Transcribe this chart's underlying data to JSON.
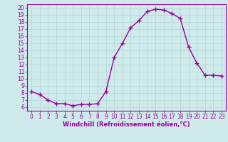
{
  "x": [
    0,
    1,
    2,
    3,
    4,
    5,
    6,
    7,
    8,
    9,
    10,
    11,
    12,
    13,
    14,
    15,
    16,
    17,
    18,
    19,
    20,
    21,
    22,
    23
  ],
  "y": [
    8.2,
    7.8,
    7.0,
    6.5,
    6.5,
    6.2,
    6.4,
    6.4,
    6.5,
    8.2,
    13.0,
    15.0,
    17.2,
    18.2,
    19.5,
    19.8,
    19.7,
    19.2,
    18.5,
    14.5,
    12.2,
    10.5,
    10.5,
    10.4
  ],
  "line_color": "#990099",
  "marker": "+",
  "markersize": 4,
  "linewidth": 1.0,
  "markeredgewidth": 1.0,
  "xlabel": "Windchill (Refroidissement éolien,°C)",
  "xlabel_fontsize": 6,
  "xlim": [
    -0.5,
    23.5
  ],
  "ylim": [
    5.5,
    20.5
  ],
  "yticks": [
    6,
    7,
    8,
    9,
    10,
    11,
    12,
    13,
    14,
    15,
    16,
    17,
    18,
    19,
    20
  ],
  "xticks": [
    0,
    1,
    2,
    3,
    4,
    5,
    6,
    7,
    8,
    9,
    10,
    11,
    12,
    13,
    14,
    15,
    16,
    17,
    18,
    19,
    20,
    21,
    22,
    23
  ],
  "bg_color": "#ceeaea",
  "grid_color": "#b8d8d8",
  "tick_color": "#990099",
  "tick_fontsize": 5.5,
  "label_color": "#990099",
  "spine_color": "#990099",
  "fig_width": 3.2,
  "fig_height": 2.0,
  "dpi": 100
}
